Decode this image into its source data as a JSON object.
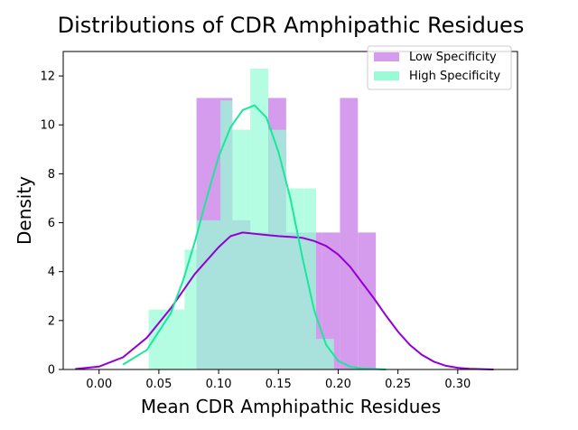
{
  "chart_data": {
    "type": "histogram",
    "title": "Distributions of CDR Amphipathic Residues",
    "xlabel": "Mean CDR Amphipathic Residues",
    "ylabel": "Density",
    "xlim": [
      -0.03,
      0.35
    ],
    "ylim": [
      0,
      13
    ],
    "xticks": [
      0.0,
      0.05,
      0.1,
      0.15,
      0.2,
      0.25,
      0.3
    ],
    "xtick_labels": [
      "0.00",
      "0.05",
      "0.10",
      "0.15",
      "0.20",
      "0.25",
      "0.30"
    ],
    "yticks": [
      0,
      2,
      4,
      6,
      8,
      10,
      12
    ],
    "ytick_labels": [
      "0",
      "2",
      "4",
      "6",
      "8",
      "10",
      "12"
    ],
    "legend_position": "top-right",
    "series": [
      {
        "name": "Low Specificity",
        "hist_color": "#d59bec",
        "line_color": "#9400d3",
        "bins": [
          {
            "x0": 0.0815,
            "x1": 0.1115,
            "density": 11.1
          },
          {
            "x0": 0.1115,
            "x1": 0.1265,
            "density": 6.1
          },
          {
            "x0": 0.1265,
            "x1": 0.1415,
            "density": 5.6
          },
          {
            "x0": 0.1415,
            "x1": 0.1565,
            "density": 11.1
          },
          {
            "x0": 0.1565,
            "x1": 0.1715,
            "density": 5.6
          },
          {
            "x0": 0.1715,
            "x1": 0.1865,
            "density": 5.6
          },
          {
            "x0": 0.1865,
            "x1": 0.2015,
            "density": 5.6
          },
          {
            "x0": 0.2015,
            "x1": 0.2165,
            "density": 11.1
          },
          {
            "x0": 0.2165,
            "x1": 0.2315,
            "density": 5.6
          }
        ],
        "kde_x": [
          -0.02,
          0.0,
          0.02,
          0.04,
          0.06,
          0.08,
          0.1,
          0.11,
          0.12,
          0.13,
          0.14,
          0.15,
          0.16,
          0.17,
          0.18,
          0.19,
          0.2,
          0.21,
          0.22,
          0.23,
          0.24,
          0.25,
          0.26,
          0.27,
          0.28,
          0.29,
          0.3,
          0.31,
          0.33
        ],
        "kde_y": [
          0.02,
          0.12,
          0.5,
          1.3,
          2.5,
          3.9,
          5.0,
          5.45,
          5.6,
          5.55,
          5.5,
          5.45,
          5.42,
          5.38,
          5.25,
          5.05,
          4.7,
          4.2,
          3.55,
          2.9,
          2.2,
          1.55,
          1.0,
          0.6,
          0.32,
          0.15,
          0.07,
          0.03,
          0.0
        ]
      },
      {
        "name": "High Specificity",
        "hist_color": "#98fcd7",
        "line_color": "#19e89b",
        "bins": [
          {
            "x0": 0.0415,
            "x1": 0.0565,
            "density": 2.45
          },
          {
            "x0": 0.0565,
            "x1": 0.0715,
            "density": 2.45
          },
          {
            "x0": 0.0715,
            "x1": 0.0815,
            "density": 4.9
          },
          {
            "x0": 0.0815,
            "x1": 0.1015,
            "density": 6.1
          },
          {
            "x0": 0.1015,
            "x1": 0.1115,
            "density": 11.0
          },
          {
            "x0": 0.1115,
            "x1": 0.1265,
            "density": 9.8
          },
          {
            "x0": 0.1265,
            "x1": 0.1415,
            "density": 12.3
          },
          {
            "x0": 0.1415,
            "x1": 0.1565,
            "density": 9.8
          },
          {
            "x0": 0.1565,
            "x1": 0.1715,
            "density": 7.4
          },
          {
            "x0": 0.1715,
            "x1": 0.1815,
            "density": 7.4
          },
          {
            "x0": 0.1815,
            "x1": 0.1965,
            "density": 1.25
          }
        ],
        "kde_x": [
          0.02,
          0.04,
          0.06,
          0.07,
          0.08,
          0.09,
          0.1,
          0.11,
          0.12,
          0.13,
          0.14,
          0.15,
          0.16,
          0.17,
          0.18,
          0.19,
          0.2,
          0.21,
          0.22,
          0.24
        ],
        "kde_y": [
          0.2,
          0.8,
          2.3,
          3.6,
          5.2,
          7.0,
          8.7,
          9.9,
          10.6,
          10.8,
          10.3,
          8.9,
          7.0,
          4.6,
          2.4,
          1.0,
          0.35,
          0.12,
          0.04,
          0.0
        ]
      }
    ]
  }
}
